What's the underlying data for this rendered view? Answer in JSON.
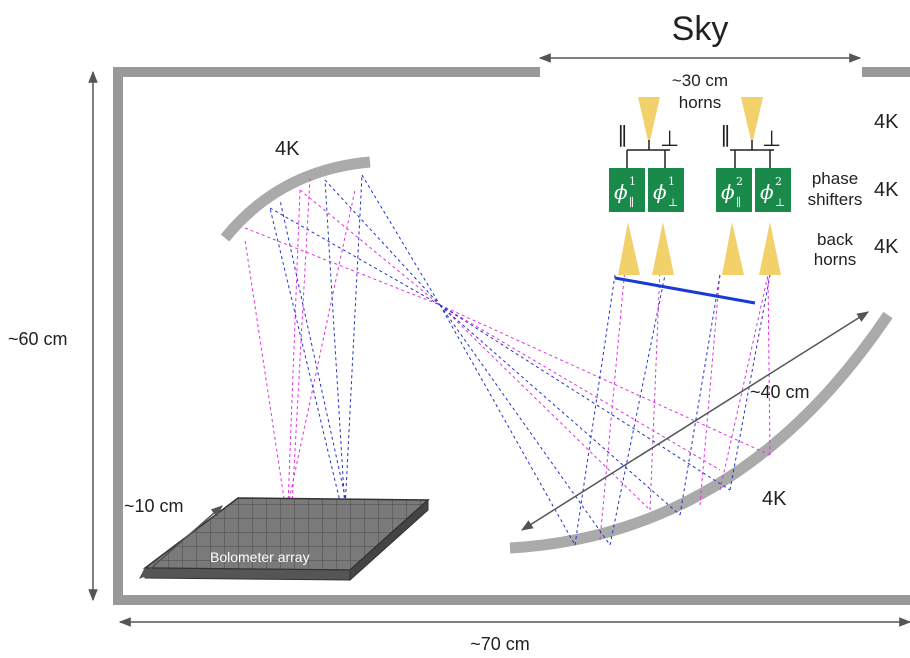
{
  "labels": {
    "sky": "Sky",
    "width_30": "~30 cm",
    "horns": "horns",
    "temp_4k_1": "4K",
    "temp_4k_2": "4K",
    "temp_4k_3": "4K",
    "temp_4k_mirror_top": "4K",
    "temp_4k_mirror_bottom": "4K",
    "phase": "phase",
    "shifters": "shifters",
    "back": "back",
    "horns_back": "horns",
    "height_60": "~60 cm",
    "dist_40": "~40 cm",
    "dist_10": "~10 cm",
    "bolometer": "Bolometer array",
    "width_70": "~70 cm",
    "parallel_1": "∥",
    "perp_1": "⊥",
    "parallel_2": "∥",
    "perp_2": "⊥"
  },
  "phase_shifters": [
    {
      "symbol": "ϕ",
      "sup": "1",
      "sub": "∥"
    },
    {
      "symbol": "ϕ",
      "sup": "1",
      "sub": "⊥"
    },
    {
      "symbol": "ϕ",
      "sup": "2",
      "sub": "∥"
    },
    {
      "symbol": "ϕ",
      "sup": "2",
      "sub": "⊥"
    }
  ],
  "colors": {
    "enclosure": "#999999",
    "mirror": "#aaaaaa",
    "horn": "#f2d16b",
    "phase_shifter": "#1a8a4a",
    "ray_blue": "#2233cc",
    "ray_magenta": "#dd33dd",
    "filter_line": "#1a3ad6",
    "dimension": "#555555",
    "bolometer": "#6e6e6e"
  }
}
